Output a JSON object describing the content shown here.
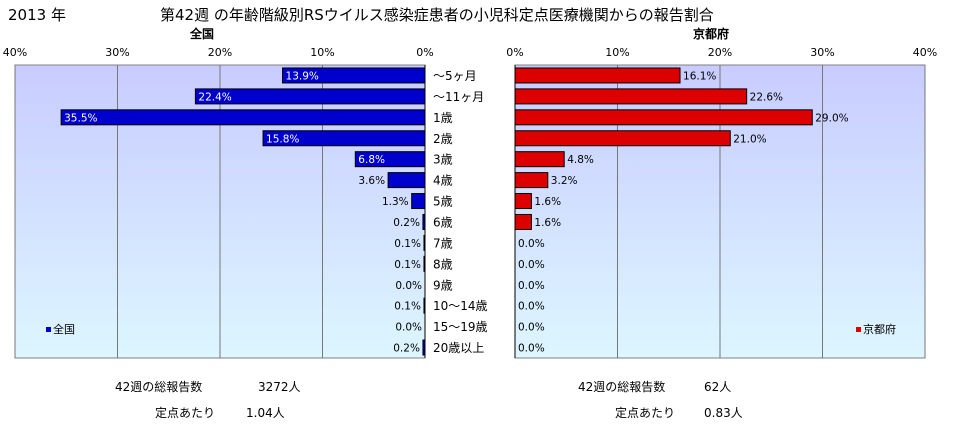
{
  "header": {
    "year": "2013 年",
    "title": "第42週 の年齢階級別RSウイルス感染症患者の小児科定点医療機関からの報告割合"
  },
  "colors": {
    "national_bar": "#0000cc",
    "kyoto_bar": "#dd0000",
    "plot_bg_top": "#c8ccff",
    "plot_bg_bottom": "#ddf6ff"
  },
  "chart_data": [
    {
      "type": "bar",
      "orientation": "horizontal",
      "direction": "right-to-left",
      "panel_title": "全国",
      "legend": "全国",
      "legend_position": "bottom-left",
      "xlim": [
        0,
        40
      ],
      "x_ticks": [
        "40%",
        "30%",
        "20%",
        "10%",
        "0%"
      ],
      "grid": true,
      "categories": [
        "～5ヶ月",
        "～11ヶ月",
        "1歳",
        "2歳",
        "3歳",
        "4歳",
        "5歳",
        "6歳",
        "7歳",
        "8歳",
        "9歳",
        "10～14歳",
        "15～19歳",
        "20歳以上"
      ],
      "values": [
        13.9,
        22.4,
        35.5,
        15.8,
        6.8,
        3.6,
        1.3,
        0.2,
        0.1,
        0.1,
        0.0,
        0.1,
        0.0,
        0.2
      ],
      "value_labels": [
        "13.9%",
        "22.4%",
        "35.5%",
        "15.8%",
        "6.8%",
        "3.6%",
        "1.3%",
        "0.2%",
        "0.1%",
        "0.1%",
        "0.0%",
        "0.1%",
        "0.0%",
        "0.2%"
      ]
    },
    {
      "type": "bar",
      "orientation": "horizontal",
      "direction": "left-to-right",
      "panel_title": "京都府",
      "legend": "京都府",
      "legend_position": "bottom-right",
      "xlim": [
        0,
        40
      ],
      "x_ticks": [
        "0%",
        "10%",
        "20%",
        "30%",
        "40%"
      ],
      "grid": true,
      "categories": [
        "～5ヶ月",
        "～11ヶ月",
        "1歳",
        "2歳",
        "3歳",
        "4歳",
        "5歳",
        "6歳",
        "7歳",
        "8歳",
        "9歳",
        "10～14歳",
        "15～19歳",
        "20歳以上"
      ],
      "values": [
        16.1,
        22.6,
        29.0,
        21.0,
        4.8,
        3.2,
        1.6,
        1.6,
        0.0,
        0.0,
        0.0,
        0.0,
        0.0,
        0.0
      ],
      "value_labels": [
        "16.1%",
        "22.6%",
        "29.0%",
        "21.0%",
        "4.8%",
        "3.2%",
        "1.6%",
        "1.6%",
        "0.0%",
        "0.0%",
        "0.0%",
        "0.0%",
        "0.0%",
        "0.0%"
      ]
    }
  ],
  "summary": {
    "national": {
      "total_label": "42週の総報告数",
      "total_value": "3272人",
      "per_site_label": "定点あたり",
      "per_site_value": "1.04人"
    },
    "kyoto": {
      "total_label": "42週の総報告数",
      "total_value": "62人",
      "per_site_label": "定点あたり",
      "per_site_value": "0.83人"
    }
  }
}
